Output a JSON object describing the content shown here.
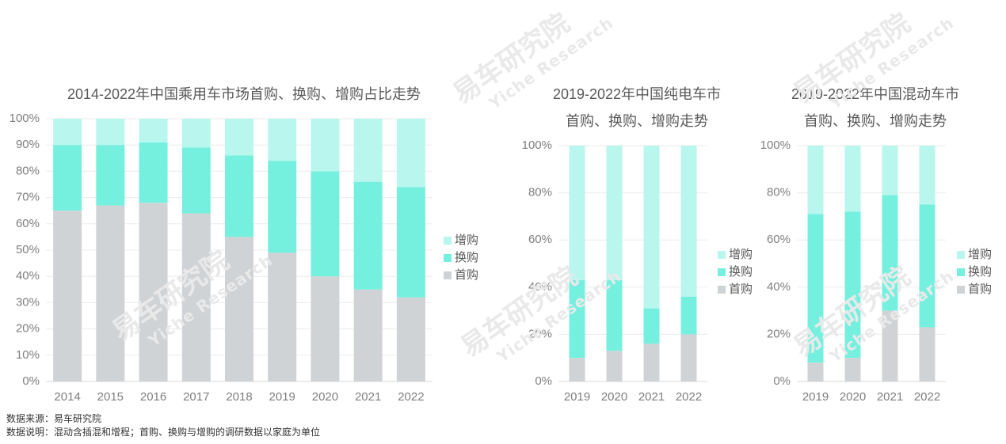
{
  "colors": {
    "首购": "#d0d3d6",
    "换购": "#75f0df",
    "增购": "#b8f6ee",
    "axis": "#7f7f7f",
    "grid": "#ececec"
  },
  "watermark": {
    "text": "易车研究院",
    "sub": "Yiche Research"
  },
  "footnotes": {
    "source": "数据来源：易车研究院",
    "note": "数据说明：混动含插混和增程；首购、换购与增购的调研数据以家庭为单位"
  },
  "chart_data": [
    {
      "type": "bar",
      "stacked": true,
      "title": "2014-2022年中国乘用车市场首购、换购、增购占比走势",
      "categories": [
        "2014",
        "2015",
        "2016",
        "2017",
        "2018",
        "2019",
        "2020",
        "2021",
        "2022"
      ],
      "series": [
        {
          "name": "首购",
          "values": [
            65,
            67,
            68,
            64,
            55,
            49,
            40,
            35,
            32
          ]
        },
        {
          "name": "换购",
          "values": [
            25,
            23,
            23,
            25,
            31,
            35,
            40,
            41,
            42
          ]
        },
        {
          "name": "增购",
          "values": [
            10,
            10,
            9,
            11,
            14,
            16,
            20,
            24,
            26
          ]
        }
      ],
      "ylim": [
        0,
        100
      ],
      "yticks": [
        "0%",
        "10%",
        "20%",
        "30%",
        "40%",
        "50%",
        "60%",
        "70%",
        "80%",
        "90%",
        "100%"
      ],
      "legend": [
        "增购",
        "换购",
        "首购"
      ],
      "legend_position": "right"
    },
    {
      "type": "bar",
      "stacked": true,
      "title": [
        "2019-2022年中国纯电车市",
        "首购、换购、增购走势"
      ],
      "categories": [
        "2019",
        "2020",
        "2021",
        "2022"
      ],
      "series": [
        {
          "name": "首购",
          "values": [
            10,
            13,
            16,
            20
          ]
        },
        {
          "name": "换购",
          "values": [
            33,
            30,
            15,
            16
          ]
        },
        {
          "name": "增购",
          "values": [
            57,
            57,
            69,
            64
          ]
        }
      ],
      "ylim": [
        0,
        100
      ],
      "yticks": [
        "0%",
        "20%",
        "40%",
        "60%",
        "80%",
        "100%"
      ],
      "legend": [
        "增购",
        "换购",
        "首购"
      ],
      "legend_position": "right"
    },
    {
      "type": "bar",
      "stacked": true,
      "title": [
        "2019-2022年中国混动车市",
        "首购、换购、增购走势"
      ],
      "categories": [
        "2019",
        "2020",
        "2021",
        "2022"
      ],
      "series": [
        {
          "name": "首购",
          "values": [
            8,
            10,
            30,
            23
          ]
        },
        {
          "name": "换购",
          "values": [
            63,
            62,
            49,
            52
          ]
        },
        {
          "name": "增购",
          "values": [
            29,
            28,
            21,
            25
          ]
        }
      ],
      "ylim": [
        0,
        100
      ],
      "yticks": [
        "0%",
        "20%",
        "40%",
        "60%",
        "80%",
        "100%"
      ],
      "legend": [
        "增购",
        "换购",
        "首购"
      ],
      "legend_position": "right"
    }
  ]
}
